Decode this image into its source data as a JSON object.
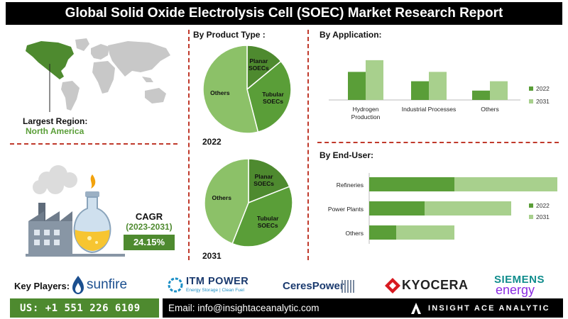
{
  "title": "Global Solid Oxide Electrolysis Cell (SOEC) Market Research Report",
  "colors": {
    "dark_green": "#5a9e38",
    "light_green": "#a8d08d",
    "mid_green": "#8cc168",
    "accent_red": "#c0392b"
  },
  "region": {
    "label": "Largest Region:",
    "value": "North America"
  },
  "cagr": {
    "label": "CAGR",
    "period": "(2023-2031)",
    "value": "24.15%"
  },
  "product_type": {
    "title": "By  Product Type :",
    "year_2022": "2022",
    "year_2031": "2031"
  },
  "application": {
    "title": "By Application:"
  },
  "end_user": {
    "title": "By End-User:"
  },
  "key_players": {
    "label": "Key Players:",
    "logos": [
      "sunfire",
      "ITM POWER",
      "Energy Storage | Clean Fuel",
      "CeresPower",
      "KYOCERA",
      "SIEMENS",
      "energy"
    ]
  },
  "footer": {
    "phone": "US: +1 551 226 6109",
    "email": "Email: info@insightaceanalytic.com",
    "brand": "INSIGHT ACE ANALYTIC"
  },
  "chart_data": [
    {
      "type": "pie",
      "title": "By  Product Type :",
      "year": "2022",
      "labels": [
        "Planar SOECs",
        "Tubular SOECs",
        "Others"
      ],
      "values": [
        14,
        32,
        54
      ],
      "colors": [
        "#4e8a2f",
        "#5a9e38",
        "#8cc168"
      ]
    },
    {
      "type": "pie",
      "title": "By  Product Type :",
      "year": "2031",
      "labels": [
        "Planar SOECs",
        "Tubular SOECs",
        "Others"
      ],
      "values": [
        19,
        37,
        44
      ],
      "colors": [
        "#4e8a2f",
        "#5a9e38",
        "#8cc168"
      ]
    },
    {
      "type": "bar",
      "title": "By Application:",
      "categories": [
        "Hydrogen Production",
        "Industrial Processes",
        "Others"
      ],
      "series": [
        {
          "name": "2022",
          "values": [
            48,
            32,
            16
          ],
          "color": "#5a9e38"
        },
        {
          "name": "2031",
          "values": [
            68,
            48,
            32
          ],
          "color": "#a8d08d"
        }
      ],
      "legend": "right"
    },
    {
      "type": "bar",
      "orientation": "horizontal",
      "title": "By End-User:",
      "categories": [
        "Refineries",
        "Power Plants",
        "Others"
      ],
      "series": [
        {
          "name": "2022",
          "values": [
            60,
            39,
            19
          ],
          "color": "#5a9e38"
        },
        {
          "name": "2031",
          "values": [
            81,
            61,
            41
          ],
          "color": "#a8d08d"
        }
      ],
      "stacked": true,
      "legend": "right"
    }
  ]
}
